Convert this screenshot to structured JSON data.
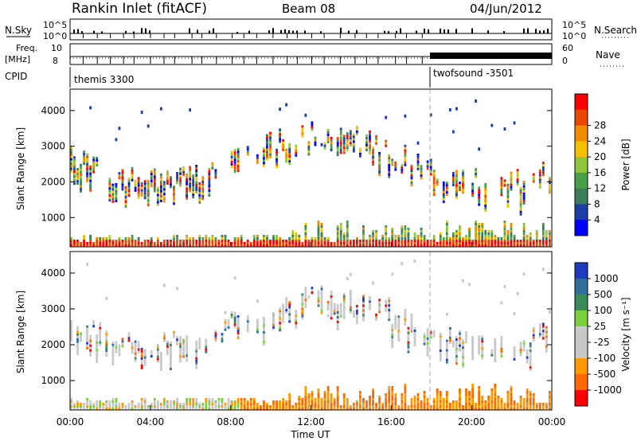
{
  "header": {
    "station": "Rankin Inlet (fitACF)",
    "beam": "Beam 08",
    "date": "04/Jun/2012"
  },
  "strip_panels": {
    "nsky_label": "N.Sky",
    "nsky_ticks": [
      "10^5",
      "10^0"
    ],
    "nsearch_label": "N.Search",
    "nsearch_ticks": [
      "10^5",
      "10^0"
    ],
    "freq_label": "Freq.",
    "freq_unit": "[MHz]",
    "freq_ticks": [
      "10",
      "8"
    ],
    "nave_label": "Nave",
    "nave_ticks": [
      "60",
      "0"
    ],
    "cpid_label": "CPID",
    "cpid_programs": [
      "themis 3300",
      "twofsound -3501"
    ]
  },
  "colors": {
    "power": [
      "#0000ff",
      "#1a3fa8",
      "#3b7f5a",
      "#48a14a",
      "#90c63a",
      "#f4c000",
      "#f08c00",
      "#e84800",
      "#ff0000"
    ],
    "velocity": [
      "#1f3cc0",
      "#2f6e9e",
      "#3a8a5a",
      "#7bd13b",
      "#c8c8c8",
      "#c8c8c8",
      "#ff9a00",
      "#ff6a00",
      "#ff0000"
    ]
  },
  "chart_data": [
    {
      "type": "heatmap",
      "name": "power-panel",
      "ylabel": "Slant Range [km]",
      "yticks": [
        "1000",
        "2000",
        "3000",
        "4000"
      ],
      "ylim": [
        180,
        4600
      ],
      "colorbar_label": "Power [dB]",
      "colorbar_ticks": [
        "4",
        "8",
        "12",
        "16",
        "20",
        "24",
        "28"
      ],
      "colorbar_range": [
        0,
        32
      ]
    },
    {
      "type": "heatmap",
      "name": "velocity-panel",
      "ylabel": "Slant Range [km]",
      "yticks": [
        "1000",
        "2000",
        "3000",
        "4000"
      ],
      "ylim": [
        180,
        4600
      ],
      "colorbar_label": "Velocity [m s⁻¹]",
      "colorbar_ticks": [
        "1000",
        "500",
        "100",
        "25",
        "-25",
        "-100",
        "-500",
        "-1000"
      ]
    }
  ],
  "xaxis": {
    "label": "Time UT",
    "ticks": [
      "00:00",
      "04:00",
      "08:00",
      "12:00",
      "16:00",
      "20:00",
      "00:00"
    ]
  }
}
